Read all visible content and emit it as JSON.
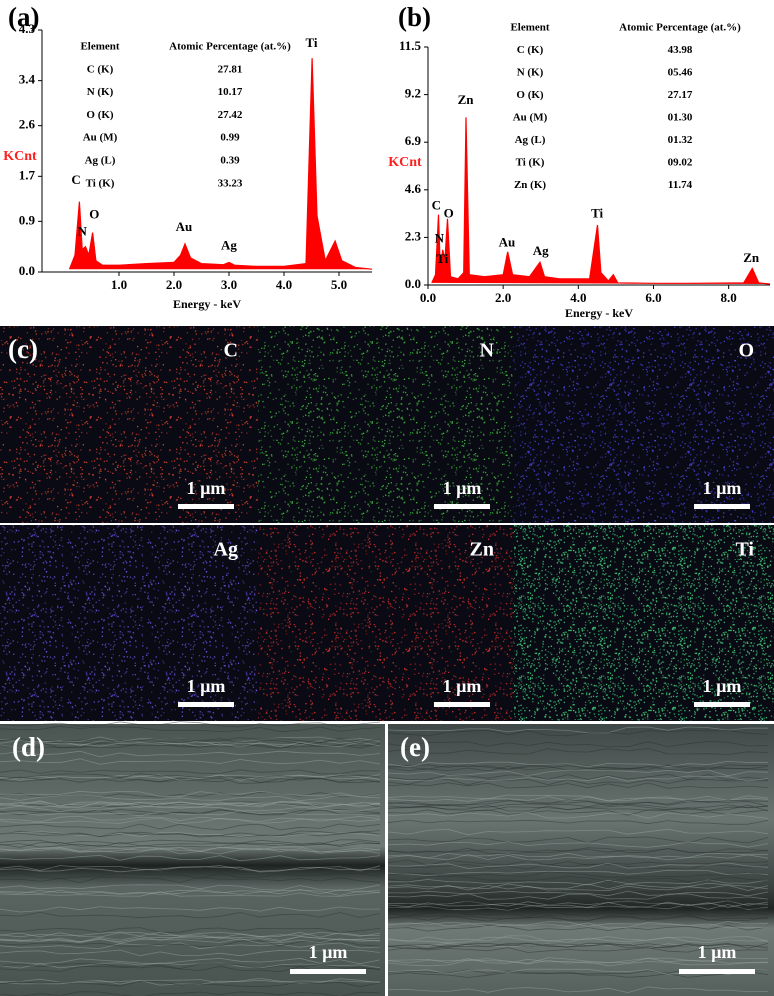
{
  "chart_data": [
    {
      "type": "line",
      "panel_label": "(a)",
      "ylabel": "KCnt",
      "xlabel": "Energy - keV",
      "color": "#ff0000",
      "x": [
        0.1,
        0.2,
        0.28,
        0.33,
        0.39,
        0.45,
        0.52,
        0.58,
        0.7,
        1.0,
        1.5,
        2.0,
        2.12,
        2.2,
        2.3,
        2.5,
        2.9,
        3.0,
        3.1,
        3.5,
        4.0,
        4.4,
        4.51,
        4.6,
        4.75,
        4.93,
        5.05,
        5.3,
        5.6
      ],
      "values": [
        0.05,
        0.3,
        1.25,
        0.4,
        0.45,
        0.3,
        0.7,
        0.2,
        0.12,
        0.12,
        0.15,
        0.17,
        0.3,
        0.5,
        0.25,
        0.15,
        0.13,
        0.17,
        0.12,
        0.1,
        0.1,
        0.15,
        3.8,
        1.0,
        0.2,
        0.55,
        0.2,
        0.08,
        0.05
      ],
      "xlim": [
        -0.4,
        5.6
      ],
      "ylim": [
        0,
        4.3
      ],
      "xticks": [
        {
          "value": 1,
          "label": "1.0"
        },
        {
          "value": 2,
          "label": "2.0"
        },
        {
          "value": 3,
          "label": "3.0"
        },
        {
          "value": 4,
          "label": "4.0"
        },
        {
          "value": 5,
          "label": "5.0"
        }
      ],
      "yticks": [
        {
          "value": 0,
          "label": "0.0"
        },
        0.9,
        1.7,
        2.6,
        3.4,
        4.3
      ],
      "annotations": [
        {
          "text": "C",
          "x": 0.22,
          "y": 1.62
        },
        {
          "text": "N",
          "x": 0.33,
          "y": 0.7
        },
        {
          "text": "O",
          "x": 0.55,
          "y": 1.0
        },
        {
          "text": "Au",
          "x": 2.18,
          "y": 0.78
        },
        {
          "text": "Ag",
          "x": 3.0,
          "y": 0.45
        },
        {
          "text": "Ti",
          "x": 4.5,
          "y": 4.05
        }
      ],
      "table": {
        "header": [
          "Element",
          "Atomic Percentage (at.%)"
        ],
        "rows": [
          [
            "C (K)",
            "27.81"
          ],
          [
            "N (K)",
            "10.17"
          ],
          [
            "O (K)",
            "27.42"
          ],
          [
            "Au (M)",
            "0.99"
          ],
          [
            "Ag (L)",
            "0.39"
          ],
          [
            "Ti (K)",
            "33.23"
          ]
        ]
      }
    },
    {
      "type": "line",
      "panel_label": "(b)",
      "ylabel": "KCnt",
      "xlabel": "Energy - keV",
      "color": "#ff0000",
      "x": [
        0.1,
        0.2,
        0.28,
        0.33,
        0.39,
        0.45,
        0.52,
        0.6,
        0.8,
        0.95,
        1.01,
        1.1,
        1.5,
        2.0,
        2.12,
        2.25,
        2.7,
        2.98,
        3.1,
        3.5,
        4.3,
        4.51,
        4.6,
        4.8,
        4.93,
        5.05,
        6,
        7,
        8.4,
        8.63,
        8.8,
        9.1
      ],
      "values": [
        0.1,
        0.5,
        3.4,
        0.6,
        1.7,
        1.2,
        3.2,
        0.4,
        0.3,
        0.6,
        8.1,
        0.5,
        0.4,
        0.5,
        1.6,
        0.5,
        0.4,
        1.1,
        0.4,
        0.3,
        0.3,
        2.9,
        0.6,
        0.2,
        0.5,
        0.1,
        0.08,
        0.08,
        0.1,
        0.8,
        0.1,
        0.05
      ],
      "xlim": [
        0,
        9.1
      ],
      "ylim": [
        0,
        11.5
      ],
      "xticks": [
        {
          "value": 0,
          "label": "0.0"
        },
        {
          "value": 2,
          "label": "2.0"
        },
        {
          "value": 4,
          "label": "4.0"
        },
        {
          "value": 6,
          "label": "6.0"
        },
        {
          "value": 8,
          "label": "8.0"
        }
      ],
      "yticks": [
        {
          "value": 0,
          "label": "0.0"
        },
        2.3,
        4.6,
        6.9,
        9.2,
        11.5
      ],
      "annotations": [
        {
          "text": "C",
          "x": 0.22,
          "y": 3.8
        },
        {
          "text": "N",
          "x": 0.3,
          "y": 2.2
        },
        {
          "text": "Ti",
          "x": 0.38,
          "y": 1.2
        },
        {
          "text": "O",
          "x": 0.55,
          "y": 3.4
        },
        {
          "text": "Zn",
          "x": 1.0,
          "y": 8.9
        },
        {
          "text": "Au",
          "x": 2.1,
          "y": 2.0
        },
        {
          "text": "Ag",
          "x": 3.0,
          "y": 1.6
        },
        {
          "text": "Ti",
          "x": 4.5,
          "y": 3.4
        },
        {
          "text": "Zn",
          "x": 8.6,
          "y": 1.25
        }
      ],
      "table": {
        "header": [
          "Element",
          "Atomic Percentage (at.%)"
        ],
        "rows": [
          [
            "C (K)",
            "43.98"
          ],
          [
            "N (K)",
            "05.46"
          ],
          [
            "O (K)",
            "27.17"
          ],
          [
            "Au (M)",
            "01.30"
          ],
          [
            "Ag (L)",
            "01.32"
          ],
          [
            "Ti (K)",
            "09.02"
          ],
          [
            "Zn (K)",
            "11.74"
          ]
        ]
      }
    }
  ],
  "maps": {
    "panel_label": "(c)",
    "tiles": [
      {
        "element": "C",
        "color": "#e0442c",
        "scale_bar": "1 µm"
      },
      {
        "element": "N",
        "color": "#3fc23f",
        "scale_bar": "1 µm"
      },
      {
        "element": "O",
        "color": "#4b45e8",
        "scale_bar": "1 µm"
      },
      {
        "element": "Ag",
        "color": "#6a4fe0",
        "scale_bar": "1 µm"
      },
      {
        "element": "Zn",
        "color": "#d8302c",
        "scale_bar": "1 µm"
      },
      {
        "element": "Ti",
        "color": "#3fd07a",
        "scale_bar": "1 µm"
      }
    ]
  },
  "micrographs": [
    {
      "panel_label": "(d)",
      "scale_bar": "1 µm"
    },
    {
      "panel_label": "(e)",
      "scale_bar": "1 µm"
    }
  ]
}
